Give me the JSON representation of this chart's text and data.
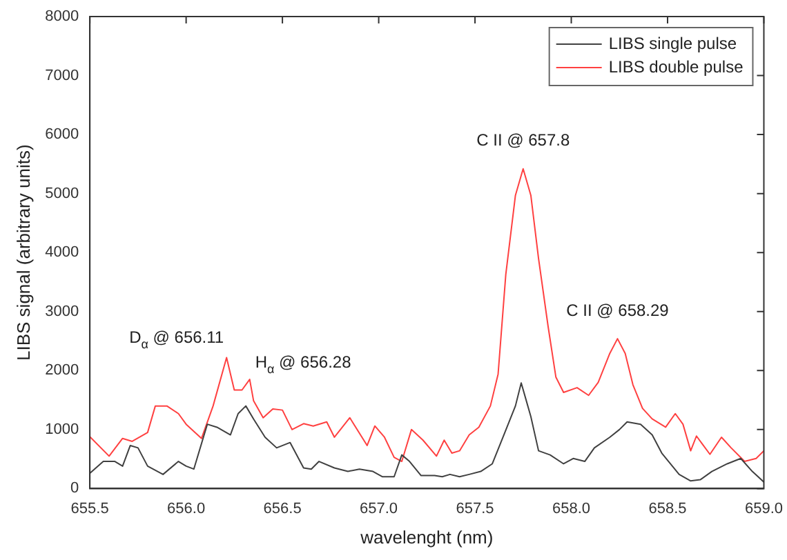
{
  "chart_data": {
    "type": "line",
    "xlabel": "wavelenght (nm)",
    "ylabel": "LIBS signal (arbitrary units)",
    "xlim": [
      655.5,
      659.0
    ],
    "xticks": [
      655.5,
      {
        "value": 656,
        "label": "656.0"
      },
      656.5,
      {
        "value": 657,
        "label": "657.0"
      },
      657.5,
      {
        "value": 658,
        "label": "658.0"
      },
      658.5,
      {
        "value": 659,
        "label": "659.0"
      }
    ],
    "ylim": [
      0,
      8000
    ],
    "yticks": [
      0,
      1000,
      2000,
      3000,
      4000,
      5000,
      6000,
      7000,
      8000
    ],
    "grid": false,
    "legend": "top right",
    "marker": "none",
    "line_style": "solid",
    "series": [
      {
        "name": "LIBS single pulse",
        "color": "#404040",
        "x": [
          655.5,
          655.57,
          655.63,
          655.67,
          655.71,
          655.75,
          655.8,
          655.88,
          655.96,
          656.0,
          656.04,
          656.11,
          656.16,
          656.23,
          656.27,
          656.31,
          656.35,
          656.41,
          656.47,
          656.54,
          656.61,
          656.65,
          656.69,
          656.77,
          656.84,
          656.9,
          656.97,
          657.02,
          657.08,
          657.12,
          657.16,
          657.22,
          657.29,
          657.33,
          657.37,
          657.42,
          657.47,
          657.53,
          657.59,
          657.65,
          657.71,
          657.74,
          657.79,
          657.83,
          657.89,
          657.96,
          658.01,
          658.07,
          658.12,
          658.2,
          658.25,
          658.29,
          658.36,
          658.42,
          658.47,
          658.56,
          658.62,
          658.67,
          658.73,
          658.81,
          658.88,
          658.94,
          659.0
        ],
        "values": [
          260,
          460,
          460,
          380,
          730,
          690,
          380,
          240,
          460,
          380,
          330,
          1090,
          1040,
          910,
          1270,
          1400,
          1180,
          870,
          690,
          780,
          350,
          330,
          460,
          350,
          290,
          330,
          290,
          200,
          200,
          570,
          460,
          220,
          220,
          200,
          240,
          200,
          240,
          290,
          420,
          910,
          1400,
          1790,
          1220,
          640,
          570,
          420,
          510,
          460,
          690,
          870,
          1000,
          1130,
          1090,
          910,
          600,
          240,
          130,
          150,
          290,
          420,
          510,
          290,
          110
        ]
      },
      {
        "name": "LIBS double pulse",
        "color": "#ff4040",
        "x": [
          655.5,
          655.6,
          655.67,
          655.72,
          655.8,
          655.84,
          655.9,
          655.96,
          656.0,
          656.08,
          656.14,
          656.21,
          656.25,
          656.29,
          656.33,
          656.35,
          656.4,
          656.45,
          656.5,
          656.55,
          656.61,
          656.66,
          656.73,
          656.77,
          656.85,
          656.94,
          656.98,
          657.03,
          657.08,
          657.12,
          657.17,
          657.23,
          657.3,
          657.34,
          657.38,
          657.42,
          657.47,
          657.52,
          657.58,
          657.62,
          657.66,
          657.71,
          657.75,
          657.79,
          657.83,
          657.88,
          657.92,
          657.96,
          658.03,
          658.09,
          658.14,
          658.2,
          658.24,
          658.28,
          658.32,
          658.37,
          658.42,
          658.49,
          658.54,
          658.58,
          658.62,
          658.65,
          658.72,
          658.78,
          658.83,
          658.9,
          658.96,
          659.0
        ],
        "values": [
          880,
          550,
          850,
          800,
          950,
          1400,
          1400,
          1270,
          1090,
          850,
          1400,
          2220,
          1670,
          1670,
          1850,
          1490,
          1200,
          1350,
          1330,
          1000,
          1100,
          1060,
          1130,
          870,
          1200,
          730,
          1060,
          870,
          530,
          460,
          1000,
          820,
          550,
          820,
          600,
          640,
          910,
          1040,
          1400,
          1940,
          3630,
          4970,
          5420,
          4970,
          3900,
          2740,
          1890,
          1630,
          1710,
          1580,
          1800,
          2290,
          2540,
          2290,
          1760,
          1360,
          1180,
          1040,
          1270,
          1090,
          640,
          890,
          580,
          870,
          690,
          460,
          510,
          640
        ]
      }
    ],
    "annotations": [
      {
        "text": "D$_{α}$ @ 656.11",
        "x": 656.21,
        "y": 2220
      },
      {
        "text": "H$_{α}$ @ 656.28",
        "x": 656.33,
        "y": 1850
      },
      {
        "text": "C II @ 657.8",
        "x": 657.75,
        "y": 5420
      },
      {
        "text": "C II @ 658.29",
        "x": 658.24,
        "y": 2540
      }
    ]
  }
}
